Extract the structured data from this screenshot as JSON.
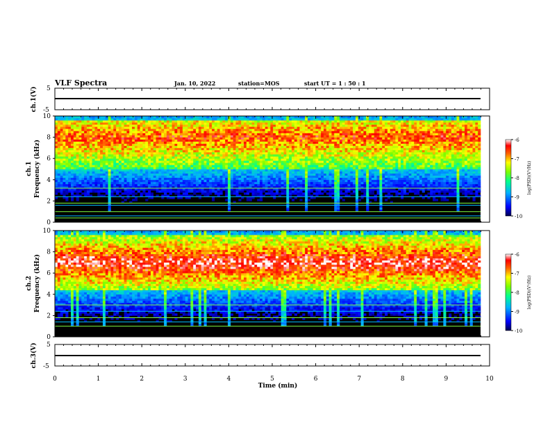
{
  "header": {
    "title": "VLF Spectra",
    "date": "Jan. 10, 2022",
    "station": "station=MOS",
    "start": "start  UT =   1 : 50 : 1"
  },
  "colorbar": {
    "ticks": [
      "-6",
      "-7",
      "-8",
      "-9",
      "-10"
    ],
    "label": "log(PSD)(V²/Hz)",
    "colors": [
      "#000080",
      "#0000ff",
      "#00c0ff",
      "#00ff80",
      "#80ff00",
      "#ffff00",
      "#ff8000",
      "#ff0000",
      "#ffffff"
    ]
  },
  "chart_data": [
    {
      "type": "line",
      "name": "ch1_waveform",
      "ylabel": "ch.1(V)",
      "ylim": [
        -5,
        5
      ],
      "yticks": [
        "5",
        "-5"
      ],
      "x": [
        0,
        10
      ],
      "y": [
        -1,
        -1
      ]
    },
    {
      "type": "heatmap",
      "name": "ch1_spectrogram",
      "ylabel_line1": "ch.1",
      "ylabel_line2": "Frequency (kHz)",
      "ylim": [
        0,
        10
      ],
      "yticks": [
        "0",
        "2",
        "4",
        "6",
        "8",
        "10"
      ],
      "xlim": [
        0,
        10
      ],
      "z_range": [
        -10,
        -6
      ],
      "band_peak_kHz": 8,
      "band_low_kHz": 5,
      "band_high_kHz": 9.5,
      "horizontal_lines_kHz": [
        0.4,
        0.6,
        1.0,
        1.6,
        1.8,
        2.4,
        3.2
      ]
    },
    {
      "type": "heatmap",
      "name": "ch2_spectrogram",
      "ylabel_line1": "ch.2",
      "ylabel_line2": "Frequency (kHz)",
      "ylim": [
        0,
        10
      ],
      "yticks": [
        "0",
        "2",
        "4",
        "6",
        "8",
        "10"
      ],
      "xlim": [
        0,
        10
      ],
      "z_range": [
        -10,
        -6
      ],
      "band_peak_kHz": 7,
      "band_low_kHz": 4.5,
      "band_high_kHz": 9.5,
      "horizontal_lines_kHz": [
        1.0,
        1.4,
        1.8,
        2.4,
        3.0
      ]
    },
    {
      "type": "line",
      "name": "ch3_waveform",
      "ylabel": "ch.3(V)",
      "ylim": [
        -5,
        5
      ],
      "yticks": [
        "5",
        "-5"
      ],
      "x": [
        0,
        10
      ],
      "y": [
        -1,
        -1
      ]
    }
  ],
  "xaxis": {
    "label": "Time (min)",
    "ticks": [
      "0",
      "1",
      "2",
      "3",
      "4",
      "5",
      "6",
      "7",
      "8",
      "9",
      "10"
    ],
    "range": [
      0,
      10
    ]
  }
}
